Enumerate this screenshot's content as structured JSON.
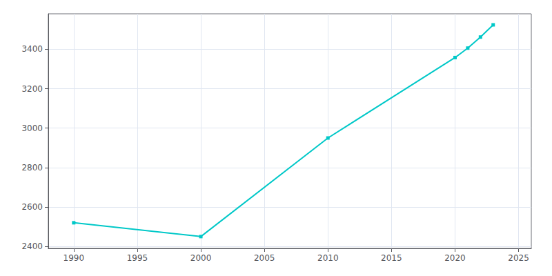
{
  "chart_data": {
    "type": "line",
    "x": [
      1990,
      2000,
      2010,
      2020,
      2021,
      2022,
      2023
    ],
    "values": [
      2520,
      2450,
      2950,
      3358,
      3406,
      3462,
      3524
    ],
    "color": "#00c8c8",
    "marker": "square",
    "xlim": [
      1988,
      2026
    ],
    "ylim": [
      2390,
      3580
    ],
    "xticks": [
      1990,
      1995,
      2000,
      2005,
      2010,
      2015,
      2020,
      2025
    ],
    "yticks": [
      2400,
      2600,
      2800,
      3000,
      3200,
      3400
    ],
    "grid": true
  }
}
